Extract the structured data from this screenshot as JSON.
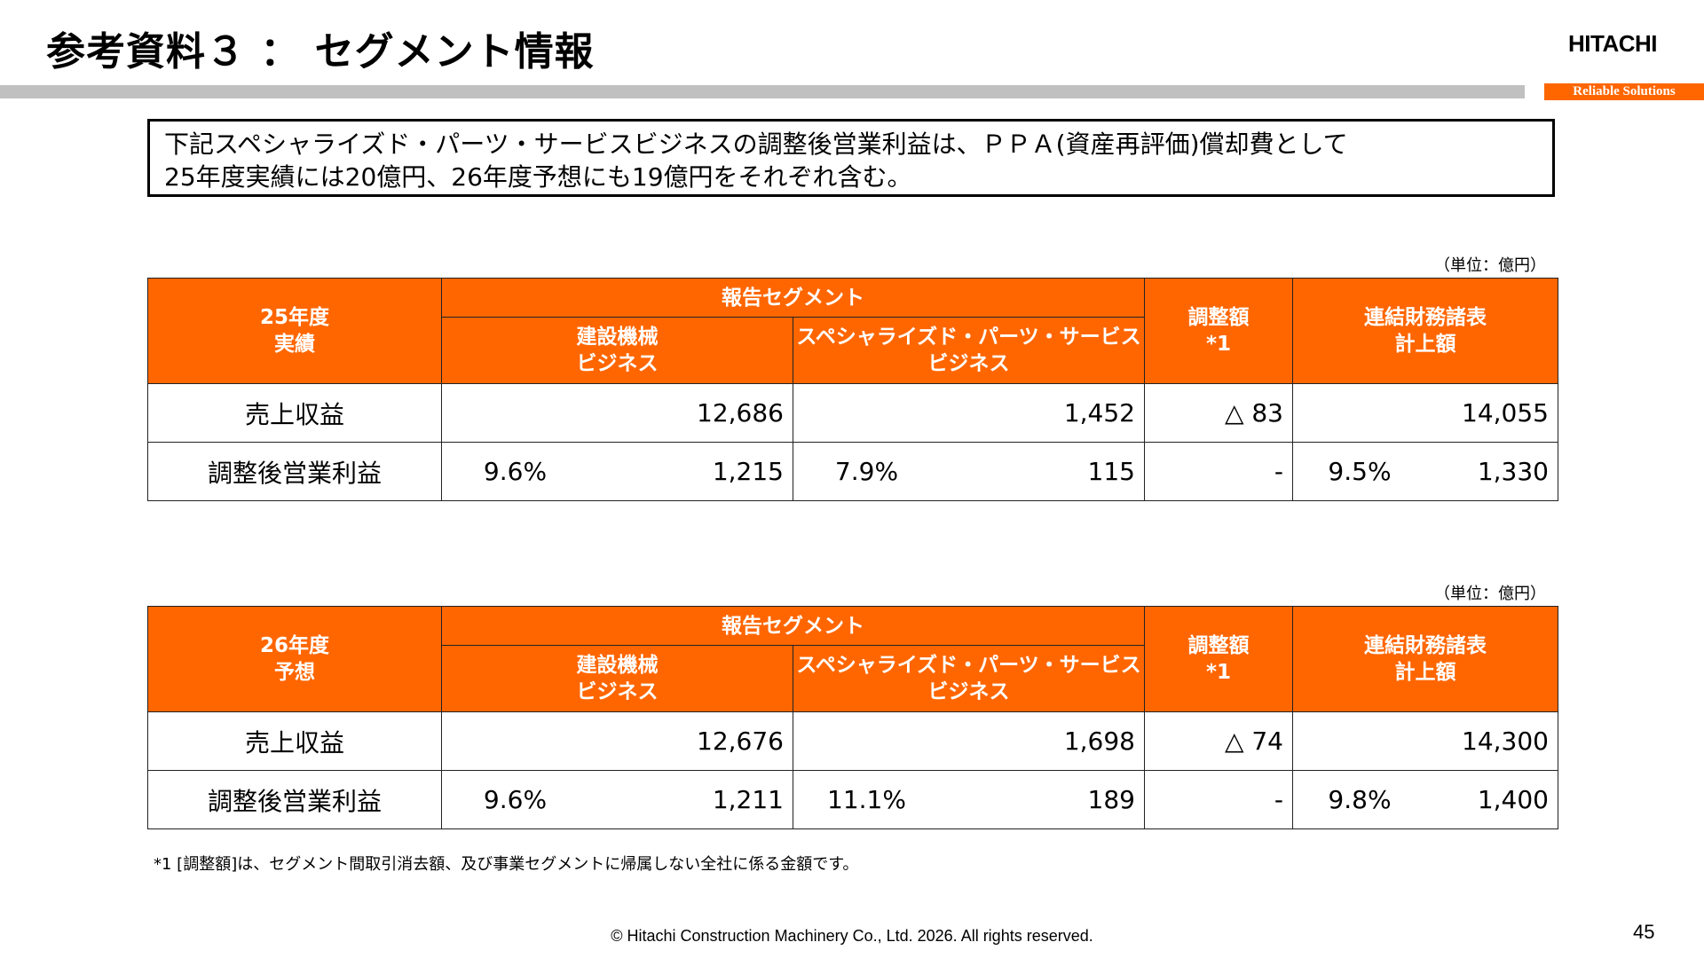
{
  "header": {
    "title": "参考資料３ ： セグメント情報",
    "brand": "HITACHI",
    "tagline": "Reliable Solutions"
  },
  "note": {
    "line1": "下記スペシャライズド・パーツ・サービスビジネスの調整後営業利益は、ＰＰＡ(資産再評価)償却費として",
    "line2": "25年度実績には20億円、26年度予想にも19億円をそれぞれ含む。"
  },
  "tables": [
    {
      "unit": "（単位：億円）",
      "period_line1": "25年度",
      "period_line2": "実績",
      "col_group": "報告セグメント",
      "col_seg1_line1": "建設機械",
      "col_seg1_line2": "ビジネス",
      "col_seg2_line1": "スペシャライズド・パーツ・サービス",
      "col_seg2_line2": "ビジネス",
      "col_adj_line1": "調整額",
      "col_adj_line2": "*1",
      "col_total_line1": "連結財務諸表",
      "col_total_line2": "計上額",
      "rows": [
        {
          "label": "売上収益",
          "seg1_pct": "",
          "seg1_value": "12,686",
          "seg2_pct": "",
          "seg2_value": "1,452",
          "adjustment": "△ 83",
          "total_pct": "",
          "total_value": "14,055"
        },
        {
          "label": "調整後営業利益",
          "seg1_pct": "9.6%",
          "seg1_value": "1,215",
          "seg2_pct": "7.9%",
          "seg2_value": "115",
          "adjustment": "-",
          "total_pct": "9.5%",
          "total_value": "1,330"
        }
      ]
    },
    {
      "unit": "（単位：億円）",
      "period_line1": "26年度",
      "period_line2": "予想",
      "col_group": "報告セグメント",
      "col_seg1_line1": "建設機械",
      "col_seg1_line2": "ビジネス",
      "col_seg2_line1": "スペシャライズド・パーツ・サービス",
      "col_seg2_line2": "ビジネス",
      "col_adj_line1": "調整額",
      "col_adj_line2": "*1",
      "col_total_line1": "連結財務諸表",
      "col_total_line2": "計上額",
      "rows": [
        {
          "label": "売上収益",
          "seg1_pct": "",
          "seg1_value": "12,676",
          "seg2_pct": "",
          "seg2_value": "1,698",
          "adjustment": "△ 74",
          "total_pct": "",
          "total_value": "14,300"
        },
        {
          "label": "調整後営業利益",
          "seg1_pct": "9.6%",
          "seg1_value": "1,211",
          "seg2_pct": "11.1%",
          "seg2_value": "189",
          "adjustment": "-",
          "total_pct": "9.8%",
          "total_value": "1,400"
        }
      ]
    }
  ],
  "footnote": "*1 [調整額]は、セグメント間取引消去額、及び事業セグメントに帰属しない全社に係る金額です。",
  "footer": {
    "copyright": "© Hitachi Construction Machinery Co., Ltd. 2026. All rights reserved.",
    "page_number": "45"
  },
  "colors": {
    "accent": "#ff6600",
    "rule": "#c0c0c0"
  }
}
